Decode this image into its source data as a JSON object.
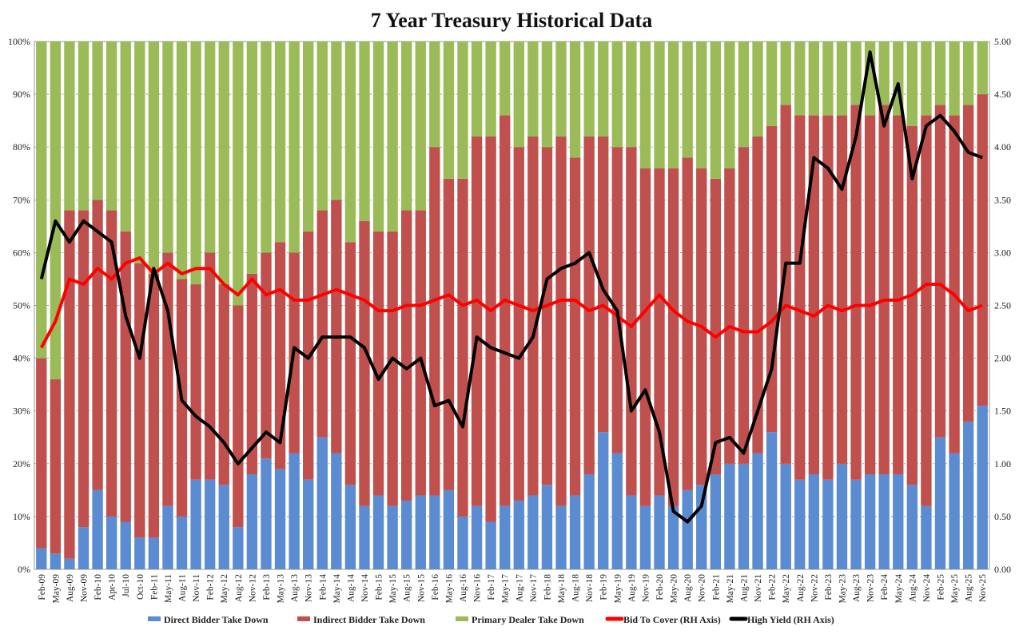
{
  "chart_data": {
    "type": "bar",
    "stacked": true,
    "title": "7 Year Treasury Historical Data",
    "categories": [
      "Feb-09",
      "May-09",
      "Aug-09",
      "Nov-09",
      "Feb-10",
      "Apr-10",
      "Jul-10",
      "Oct-10",
      "Feb-11",
      "May-11",
      "Aug-11",
      "Nov-11",
      "Feb-12",
      "May-12",
      "Aug-12",
      "Nov-12",
      "Feb-13",
      "May-13",
      "Aug-13",
      "Nov-13",
      "Feb-14",
      "May-14",
      "Aug-14",
      "Nov-14",
      "Feb-15",
      "May-15",
      "Aug-15",
      "Nov-15",
      "Feb-16",
      "May-16",
      "Aug-16",
      "Nov-16",
      "Feb-17",
      "May-17",
      "Aug-17",
      "Nov-17",
      "Feb-18",
      "May-18",
      "Aug-18",
      "Nov-18",
      "Feb-19",
      "May-19",
      "Aug-19",
      "Nov-19",
      "Feb-20",
      "May-20",
      "Aug-20",
      "Nov-20",
      "Feb-21",
      "May-21",
      "Aug-21",
      "Nov-21",
      "Feb-22",
      "May-22",
      "Aug-22",
      "Nov-22",
      "Feb-23",
      "May-23",
      "Aug-23",
      "Nov-23",
      "Feb-24",
      "May-24",
      "Aug-24",
      "Nov-24",
      "Feb-25",
      "May-25",
      "Aug-25",
      "Nov-25"
    ],
    "left_axis": {
      "ylim": [
        0,
        100
      ],
      "unit": "%",
      "ticks": [
        "0%",
        "10%",
        "20%",
        "30%",
        "40%",
        "50%",
        "60%",
        "70%",
        "80%",
        "90%",
        "100%"
      ]
    },
    "right_axis": {
      "ylim": [
        0,
        5
      ],
      "ticks": [
        "0.00",
        "0.50",
        "1.00",
        "1.50",
        "2.00",
        "2.50",
        "3.00",
        "3.50",
        "4.00",
        "4.50",
        "5.00"
      ]
    },
    "grid": true,
    "legend_position": "bottom",
    "series": [
      {
        "name": "Direct Bidder Take Down",
        "kind": "bar",
        "axis": "left",
        "color": "#5b8bd0",
        "values": [
          4,
          3,
          2,
          8,
          15,
          10,
          9,
          6,
          6,
          12,
          10,
          17,
          17,
          16,
          8,
          18,
          21,
          19,
          22,
          17,
          25,
          22,
          16,
          12,
          14,
          12,
          13,
          14,
          14,
          15,
          10,
          12,
          9,
          12,
          13,
          14,
          16,
          12,
          14,
          18,
          26,
          22,
          14,
          12,
          14,
          12,
          15,
          16,
          18,
          20,
          20,
          22,
          26,
          20,
          17,
          18,
          17,
          20,
          17,
          18,
          18,
          18,
          16,
          12,
          25,
          22,
          28,
          31
        ]
      },
      {
        "name": "Indirect Bidder Take Down",
        "kind": "bar",
        "axis": "left",
        "color": "#c0504d",
        "values": [
          36,
          33,
          66,
          60,
          55,
          58,
          55,
          52,
          50,
          48,
          45,
          37,
          43,
          38,
          42,
          38,
          39,
          43,
          38,
          47,
          43,
          48,
          46,
          54,
          50,
          52,
          55,
          54,
          66,
          59,
          64,
          70,
          73,
          74,
          67,
          68,
          64,
          70,
          64,
          64,
          56,
          58,
          66,
          64,
          62,
          64,
          63,
          60,
          56,
          56,
          60,
          60,
          58,
          68,
          69,
          68,
          69,
          66,
          71,
          68,
          70,
          68,
          68,
          74,
          63,
          64,
          60,
          59
        ]
      },
      {
        "name": "Primary Dealer Take Down",
        "kind": "bar",
        "axis": "left",
        "color": "#9bbb59",
        "values": [
          60,
          64,
          32,
          32,
          30,
          32,
          36,
          42,
          44,
          40,
          45,
          46,
          40,
          46,
          50,
          44,
          40,
          38,
          40,
          36,
          32,
          30,
          38,
          34,
          36,
          36,
          32,
          32,
          20,
          26,
          26,
          18,
          18,
          14,
          20,
          18,
          20,
          18,
          22,
          18,
          18,
          20,
          20,
          24,
          24,
          24,
          22,
          24,
          26,
          24,
          20,
          18,
          16,
          12,
          14,
          14,
          14,
          14,
          12,
          14,
          12,
          14,
          16,
          14,
          12,
          14,
          12,
          10
        ]
      },
      {
        "name": "Bid To Cover (RH Axis)",
        "kind": "line",
        "axis": "right",
        "color": "#ff0000",
        "values": [
          2.1,
          2.35,
          2.75,
          2.7,
          2.85,
          2.75,
          2.9,
          2.95,
          2.8,
          2.9,
          2.8,
          2.85,
          2.85,
          2.7,
          2.6,
          2.75,
          2.6,
          2.65,
          2.55,
          2.55,
          2.6,
          2.65,
          2.6,
          2.55,
          2.45,
          2.45,
          2.5,
          2.5,
          2.55,
          2.6,
          2.5,
          2.55,
          2.45,
          2.55,
          2.5,
          2.45,
          2.5,
          2.55,
          2.55,
          2.45,
          2.5,
          2.4,
          2.3,
          2.45,
          2.6,
          2.45,
          2.35,
          2.3,
          2.2,
          2.3,
          2.25,
          2.25,
          2.35,
          2.5,
          2.45,
          2.4,
          2.5,
          2.45,
          2.5,
          2.5,
          2.55,
          2.55,
          2.6,
          2.7,
          2.7,
          2.6,
          2.45,
          2.5
        ]
      },
      {
        "name": "High Yield (RH Axis)",
        "kind": "line",
        "axis": "right",
        "color": "#000000",
        "values": [
          2.75,
          3.3,
          3.1,
          3.3,
          3.2,
          3.1,
          2.4,
          2.0,
          2.85,
          2.45,
          1.6,
          1.45,
          1.35,
          1.2,
          1.0,
          1.15,
          1.3,
          1.2,
          2.1,
          2.0,
          2.2,
          2.2,
          2.2,
          2.1,
          1.8,
          2.0,
          1.9,
          2.0,
          1.55,
          1.6,
          1.35,
          2.2,
          2.1,
          2.05,
          2.0,
          2.2,
          2.75,
          2.85,
          2.9,
          3.0,
          2.65,
          2.45,
          1.5,
          1.7,
          1.3,
          0.55,
          0.45,
          0.6,
          1.2,
          1.25,
          1.1,
          1.5,
          1.9,
          2.9,
          2.9,
          3.9,
          3.8,
          3.6,
          4.1,
          4.9,
          4.2,
          4.6,
          3.7,
          4.2,
          4.3,
          4.15,
          3.95,
          3.9
        ]
      }
    ]
  }
}
